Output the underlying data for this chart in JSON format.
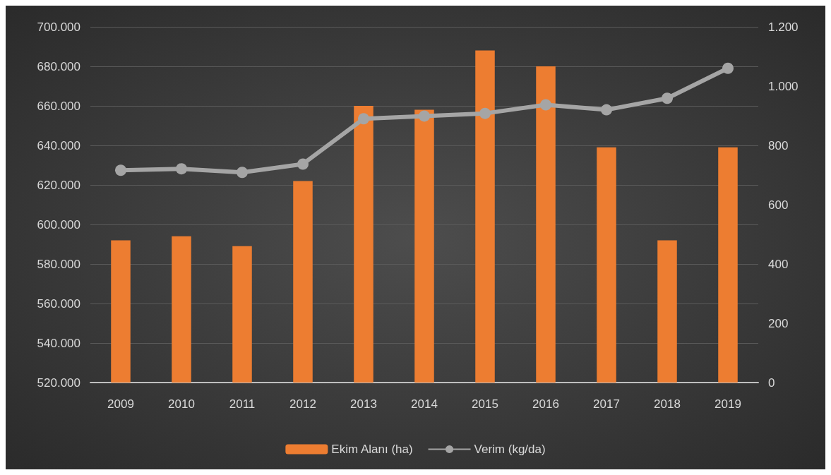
{
  "chart_data": {
    "type": "bar",
    "categories": [
      "2009",
      "2010",
      "2011",
      "2012",
      "2013",
      "2014",
      "2015",
      "2016",
      "2017",
      "2018",
      "2019"
    ],
    "series": [
      {
        "name": "Ekim Alanı (ha)",
        "color": "#ed7d31",
        "values": [
          592000,
          594000,
          589000,
          622000,
          660000,
          658000,
          688000,
          680000,
          639000,
          592000,
          639000
        ]
      },
      {
        "name": "Verim (kg/da)",
        "type": "line",
        "axis": "y2",
        "color": "#a5a5a5",
        "marker": "circle",
        "values": [
          716,
          721,
          709,
          737,
          890,
          899,
          908,
          937,
          920,
          959,
          1060
        ]
      }
    ],
    "ylim": [
      520000,
      700000
    ],
    "yticks": [
      {
        "value": 520000,
        "label": "520.000"
      },
      {
        "value": 540000,
        "label": "540.000"
      },
      {
        "value": 560000,
        "label": "560.000"
      },
      {
        "value": 580000,
        "label": "580.000"
      },
      {
        "value": 600000,
        "label": "600.000"
      },
      {
        "value": 620000,
        "label": "620.000"
      },
      {
        "value": 640000,
        "label": "640.000"
      },
      {
        "value": 660000,
        "label": "660.000"
      },
      {
        "value": 680000,
        "label": "680.000"
      },
      {
        "value": 700000,
        "label": "700.000"
      }
    ],
    "y2lim": [
      0,
      1200
    ],
    "y2ticks": [
      0,
      200,
      400,
      600,
      800,
      {
        "value": 1000,
        "label": "1.000"
      },
      {
        "value": 1200,
        "label": "1.200"
      }
    ],
    "grid": "y",
    "legend": "bottom"
  }
}
